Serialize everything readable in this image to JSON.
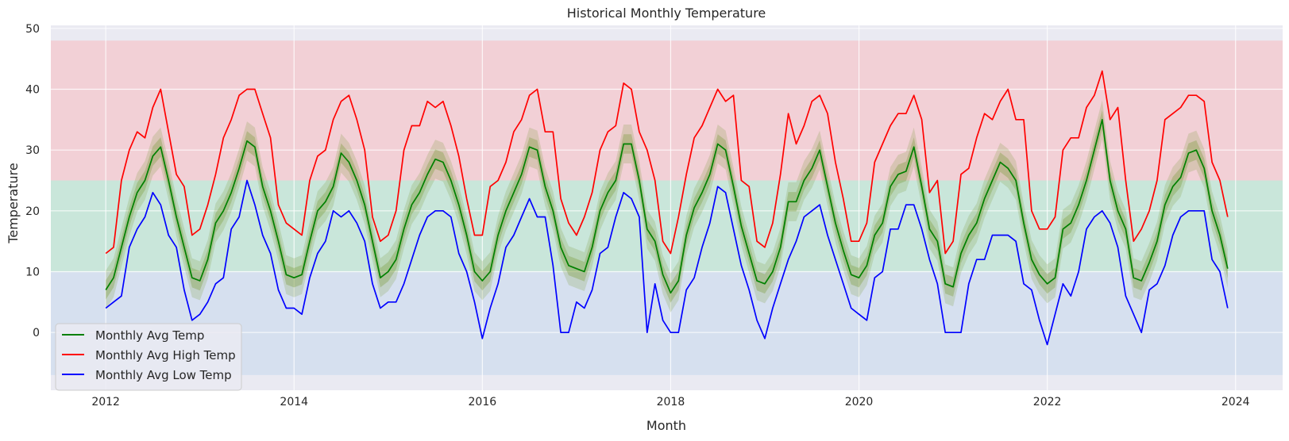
{
  "chart_data": {
    "type": "line",
    "title": "Historical Monthly Temperature",
    "xlabel": "Month",
    "ylabel": "Temperature",
    "x_start": "2012-01",
    "xlim": [
      "2011-06",
      "2024-07"
    ],
    "ylim": [
      -9.5,
      50.5
    ],
    "x_ticks": [
      "2012",
      "2014",
      "2016",
      "2018",
      "2020",
      "2022",
      "2024"
    ],
    "y_ticks": [
      0,
      10,
      20,
      30,
      40,
      50
    ],
    "grid": true,
    "legend_position": "bottom-left",
    "bands": [
      {
        "from": -7,
        "to": 10,
        "color": "#d6e0ef"
      },
      {
        "from": 10,
        "to": 25,
        "color": "#c9e6da"
      },
      {
        "from": 25,
        "to": 48,
        "color": "#f2d0d6"
      }
    ],
    "series": [
      {
        "name": "Monthly Avg Temp",
        "color": "#008000",
        "band_color": "#7a9a3a",
        "values": [
          7,
          9,
          14,
          19,
          23,
          25,
          29,
          30.5,
          25,
          19,
          14,
          9,
          8.5,
          12,
          18,
          20,
          23,
          27,
          31.5,
          30.5,
          24,
          20,
          15,
          9.5,
          9,
          9.5,
          15,
          20,
          21.5,
          24,
          29.5,
          28,
          25,
          21,
          15,
          9,
          10,
          12,
          17,
          21,
          23,
          26,
          28.5,
          28,
          25,
          21,
          16,
          10,
          8.5,
          10,
          16,
          20,
          23,
          26,
          30.5,
          30,
          24,
          20,
          14,
          11,
          10.5,
          10,
          14,
          20,
          23,
          25,
          31,
          31,
          25,
          17,
          15,
          9.5,
          6.5,
          8.5,
          16,
          20.5,
          23,
          26,
          31,
          30,
          24,
          17.5,
          13,
          8.5,
          8,
          10,
          14,
          21.5,
          21.5,
          25,
          27,
          30,
          24,
          18,
          13.5,
          9.5,
          9,
          11,
          16,
          18,
          24,
          26,
          26.5,
          30.5,
          24,
          17,
          15,
          8,
          7.5,
          13,
          16,
          18,
          22,
          25,
          28,
          27,
          25,
          18,
          12,
          9.5,
          8,
          9,
          17,
          18,
          21,
          25,
          30,
          35,
          25,
          20,
          17,
          9,
          8.5,
          11.5,
          15,
          21,
          24,
          25.5,
          29.5,
          30,
          27,
          20,
          16,
          10.5
        ]
      },
      {
        "name": "Monthly Avg High Temp",
        "color": "#ff0000",
        "values": [
          13,
          14,
          25,
          30,
          33,
          32,
          37,
          40,
          33,
          26,
          24,
          16,
          17,
          21,
          26,
          32,
          35,
          39,
          40,
          40,
          36,
          32,
          21,
          18,
          17,
          16,
          25,
          29,
          30,
          35,
          38,
          39,
          35,
          30,
          19,
          15,
          16,
          20,
          30,
          34,
          34,
          38,
          37,
          38,
          34,
          29,
          22,
          16,
          16,
          24,
          25,
          28,
          33,
          35,
          39,
          40,
          33,
          33,
          22,
          18,
          16,
          19,
          23,
          30,
          33,
          34,
          41,
          40,
          33,
          30,
          25,
          15,
          13,
          19,
          26,
          32,
          34,
          37,
          40,
          38,
          39,
          25,
          24,
          15,
          14,
          18,
          26,
          36,
          31,
          34,
          38,
          39,
          36,
          28,
          22,
          15,
          15,
          18,
          28,
          31,
          34,
          36,
          36,
          39,
          35,
          23,
          25,
          13,
          15,
          26,
          27,
          32,
          36,
          35,
          38,
          40,
          35,
          35,
          20,
          17,
          17,
          19,
          30,
          32,
          32,
          37,
          39,
          43,
          35,
          37,
          25,
          15,
          17,
          20,
          25,
          35,
          36,
          37,
          39,
          39,
          38,
          28,
          25,
          19
        ]
      },
      {
        "name": "Monthly Avg Low Temp",
        "color": "#0000ff",
        "values": [
          4,
          5,
          6,
          14,
          17,
          19,
          23,
          21,
          16,
          14,
          7,
          2,
          3,
          5,
          8,
          9,
          17,
          19,
          25,
          21,
          16,
          13,
          7,
          4,
          4,
          3,
          9,
          13,
          15,
          20,
          19,
          20,
          18,
          15,
          8,
          4,
          5,
          5,
          8,
          12,
          16,
          19,
          20,
          20,
          19,
          13,
          10,
          5,
          -1,
          4,
          8,
          14,
          16,
          19,
          22,
          19,
          19,
          11,
          0,
          0,
          5,
          4,
          7,
          13,
          14,
          19,
          23,
          22,
          19,
          0,
          8,
          2,
          0,
          0,
          7,
          9,
          14,
          18,
          24,
          23,
          17,
          11,
          7,
          2,
          -1,
          4,
          8,
          12,
          15,
          19,
          20,
          21,
          16,
          12,
          8,
          4,
          3,
          2,
          9,
          10,
          17,
          17,
          21,
          21,
          17,
          12,
          8,
          0,
          0,
          0,
          8,
          12,
          12,
          16,
          16,
          16,
          15,
          8,
          7,
          2,
          -2,
          3,
          8,
          6,
          10,
          17,
          19,
          20,
          18,
          14,
          6,
          3,
          0,
          7,
          8,
          11,
          16,
          19,
          20,
          20,
          20,
          12,
          10,
          4
        ]
      }
    ]
  }
}
